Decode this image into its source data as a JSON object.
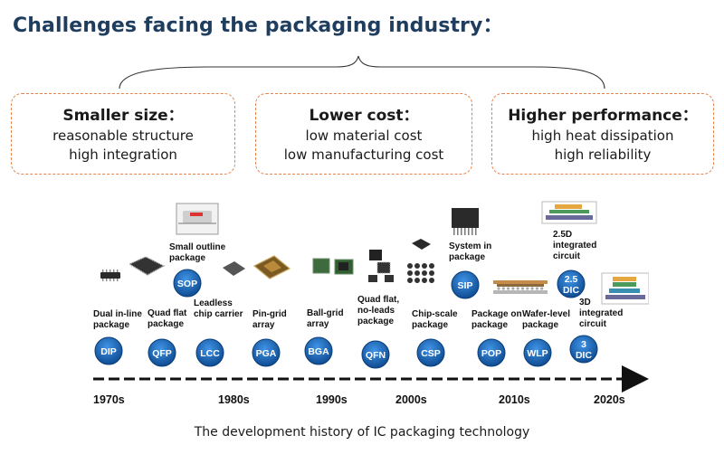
{
  "title": "Challenges facing the packaging industry：",
  "challenges": [
    {
      "heading": "Smaller size：",
      "lines": [
        "reasonable structure",
        "high integration"
      ]
    },
    {
      "heading": "Lower cost：",
      "lines": [
        "low material cost",
        "low manufacturing cost"
      ]
    },
    {
      "heading": "Higher performance：",
      "lines": [
        "high heat dissipation",
        "high reliability"
      ]
    }
  ],
  "packages": [
    {
      "abbr": "DIP",
      "label": [
        "Dual in-line",
        "package"
      ]
    },
    {
      "abbr": "QFP",
      "label": [
        "Quad flat",
        "package"
      ]
    },
    {
      "abbr": "SOP",
      "label": [
        "Small outline",
        "package"
      ]
    },
    {
      "abbr": "LCC",
      "label": [
        "Leadless",
        "chip carrier"
      ]
    },
    {
      "abbr": "PGA",
      "label": [
        "Pin-grid",
        "array"
      ]
    },
    {
      "abbr": "BGA",
      "label": [
        "Ball-grid",
        "array"
      ]
    },
    {
      "abbr": "QFN",
      "label": [
        "Quad flat,",
        "no-leads",
        "package"
      ]
    },
    {
      "abbr": "CSP",
      "label": [
        "Chip-scale",
        "package"
      ]
    },
    {
      "abbr": "SIP",
      "label": [
        "System in",
        "package"
      ]
    },
    {
      "abbr": "POP",
      "label": [
        "Package on",
        "package"
      ]
    },
    {
      "abbr": "WLP",
      "label": [
        "Wafer-level",
        "package"
      ]
    },
    {
      "abbr": "2.5\nDIC",
      "label": [
        "2.5D",
        "integrated",
        "circuit"
      ]
    },
    {
      "abbr": "3\nDIC",
      "label": [
        "3D",
        "integrated",
        "circuit"
      ]
    }
  ],
  "decades": [
    "1970s",
    "1980s",
    "1990s",
    "2000s",
    "2010s",
    "2020s"
  ],
  "caption": "The development history of IC packaging technology",
  "colors": {
    "title": "#1f3d5f",
    "box_border": "#e4844a",
    "badge": "#1f6fc4",
    "badge_dark": "#0f4c92"
  }
}
